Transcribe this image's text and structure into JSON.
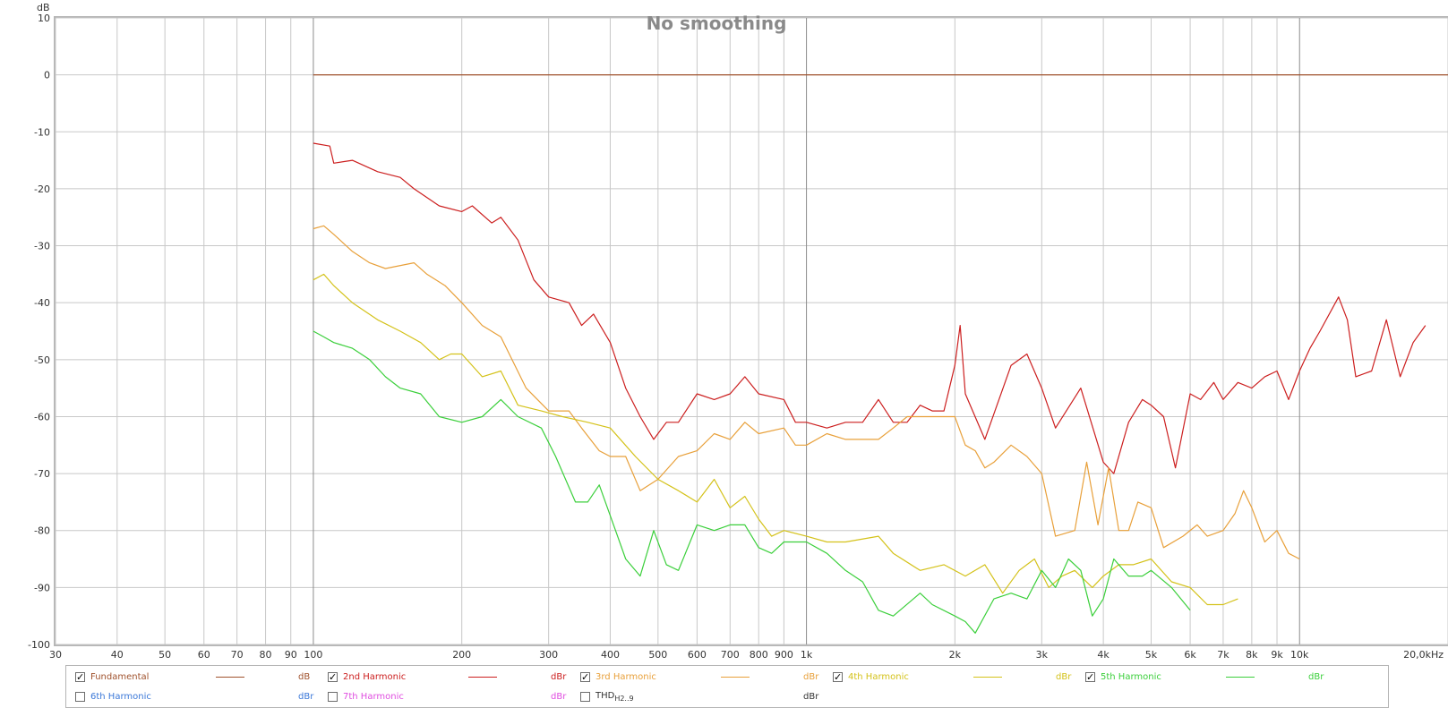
{
  "chart_data": {
    "type": "line",
    "title": "No smoothing",
    "ylabel": "dB",
    "x_scale": "log",
    "xlim": [
      30,
      20000
    ],
    "ylim": [
      -100,
      10
    ],
    "y_ticks": [
      10,
      0,
      -10,
      -20,
      -30,
      -40,
      -50,
      -60,
      -70,
      -80,
      -90,
      -100
    ],
    "x_ticks": [
      {
        "v": 30,
        "label": "30"
      },
      {
        "v": 40,
        "label": "40"
      },
      {
        "v": 50,
        "label": "50"
      },
      {
        "v": 60,
        "label": "60"
      },
      {
        "v": 70,
        "label": "70"
      },
      {
        "v": 80,
        "label": "80"
      },
      {
        "v": 90,
        "label": "90"
      },
      {
        "v": 100,
        "label": "100"
      },
      {
        "v": 200,
        "label": "200"
      },
      {
        "v": 300,
        "label": "300"
      },
      {
        "v": 400,
        "label": "400"
      },
      {
        "v": 500,
        "label": "500"
      },
      {
        "v": 600,
        "label": "600"
      },
      {
        "v": 700,
        "label": "700"
      },
      {
        "v": 800,
        "label": "800"
      },
      {
        "v": 900,
        "label": "900"
      },
      {
        "v": 1000,
        "label": "1k"
      },
      {
        "v": 2000,
        "label": "2k"
      },
      {
        "v": 3000,
        "label": "3k"
      },
      {
        "v": 4000,
        "label": "4k"
      },
      {
        "v": 5000,
        "label": "5k"
      },
      {
        "v": 6000,
        "label": "6k"
      },
      {
        "v": 7000,
        "label": "7k"
      },
      {
        "v": 8000,
        "label": "8k"
      },
      {
        "v": 9000,
        "label": "9k"
      },
      {
        "v": 10000,
        "label": "10k"
      },
      {
        "v": 20000,
        "label": "20,0kHz"
      }
    ],
    "grid": true,
    "series": [
      {
        "name": "Fundamental",
        "unit": "dB",
        "color": "#a0522d",
        "checked": true,
        "points": [
          [
            100,
            0
          ],
          [
            20000,
            0
          ]
        ]
      },
      {
        "name": "2nd Harmonic",
        "unit": "dBr",
        "color": "#cc1f1f",
        "checked": true,
        "points": [
          [
            100,
            -12
          ],
          [
            108,
            -12.5
          ],
          [
            110,
            -15.5
          ],
          [
            120,
            -15
          ],
          [
            135,
            -17
          ],
          [
            150,
            -18
          ],
          [
            160,
            -20
          ],
          [
            180,
            -23
          ],
          [
            200,
            -24
          ],
          [
            210,
            -23
          ],
          [
            230,
            -26
          ],
          [
            240,
            -25
          ],
          [
            260,
            -29
          ],
          [
            280,
            -36
          ],
          [
            300,
            -39
          ],
          [
            330,
            -40
          ],
          [
            350,
            -44
          ],
          [
            370,
            -42
          ],
          [
            400,
            -47
          ],
          [
            430,
            -55
          ],
          [
            460,
            -60
          ],
          [
            490,
            -64
          ],
          [
            520,
            -61
          ],
          [
            550,
            -61
          ],
          [
            600,
            -56
          ],
          [
            650,
            -57
          ],
          [
            700,
            -56
          ],
          [
            750,
            -53
          ],
          [
            800,
            -56
          ],
          [
            900,
            -57
          ],
          [
            950,
            -61
          ],
          [
            1000,
            -61
          ],
          [
            1100,
            -62
          ],
          [
            1200,
            -61
          ],
          [
            1300,
            -61
          ],
          [
            1400,
            -57
          ],
          [
            1500,
            -61
          ],
          [
            1600,
            -61
          ],
          [
            1700,
            -58
          ],
          [
            1800,
            -59
          ],
          [
            1900,
            -59
          ],
          [
            2000,
            -51
          ],
          [
            2050,
            -44
          ],
          [
            2100,
            -56
          ],
          [
            2300,
            -64
          ],
          [
            2600,
            -51
          ],
          [
            2800,
            -49
          ],
          [
            3000,
            -55
          ],
          [
            3200,
            -62
          ],
          [
            3600,
            -55
          ],
          [
            4000,
            -68
          ],
          [
            4200,
            -70
          ],
          [
            4500,
            -61
          ],
          [
            4800,
            -57
          ],
          [
            5000,
            -58
          ],
          [
            5300,
            -60
          ],
          [
            5600,
            -69
          ],
          [
            6000,
            -56
          ],
          [
            6300,
            -57
          ],
          [
            6700,
            -54
          ],
          [
            7000,
            -57
          ],
          [
            7500,
            -54
          ],
          [
            8000,
            -55
          ],
          [
            8500,
            -53
          ],
          [
            9000,
            -52
          ],
          [
            9500,
            -57
          ],
          [
            10000,
            -52
          ],
          [
            10500,
            -48
          ],
          [
            11000,
            -45
          ],
          [
            12000,
            -39
          ],
          [
            12500,
            -43
          ],
          [
            13000,
            -53
          ],
          [
            14000,
            -52
          ],
          [
            15000,
            -43
          ],
          [
            16000,
            -53
          ],
          [
            17000,
            -47
          ],
          [
            18000,
            -44
          ]
        ]
      },
      {
        "name": "3rd Harmonic",
        "unit": "dBr",
        "color": "#e8a03a",
        "checked": true,
        "points": [
          [
            100,
            -27
          ],
          [
            105,
            -26.5
          ],
          [
            110,
            -28
          ],
          [
            120,
            -31
          ],
          [
            130,
            -33
          ],
          [
            140,
            -34
          ],
          [
            160,
            -33
          ],
          [
            170,
            -35
          ],
          [
            185,
            -37
          ],
          [
            200,
            -40
          ],
          [
            220,
            -44
          ],
          [
            240,
            -46
          ],
          [
            270,
            -55
          ],
          [
            300,
            -59
          ],
          [
            330,
            -59
          ],
          [
            350,
            -62
          ],
          [
            380,
            -66
          ],
          [
            400,
            -67
          ],
          [
            430,
            -67
          ],
          [
            460,
            -73
          ],
          [
            500,
            -71
          ],
          [
            550,
            -67
          ],
          [
            600,
            -66
          ],
          [
            650,
            -63
          ],
          [
            700,
            -64
          ],
          [
            750,
            -61
          ],
          [
            800,
            -63
          ],
          [
            900,
            -62
          ],
          [
            950,
            -65
          ],
          [
            1000,
            -65
          ],
          [
            1100,
            -63
          ],
          [
            1200,
            -64
          ],
          [
            1400,
            -64
          ],
          [
            1500,
            -62
          ],
          [
            1600,
            -60
          ],
          [
            1800,
            -60
          ],
          [
            2000,
            -60
          ],
          [
            2100,
            -65
          ],
          [
            2200,
            -66
          ],
          [
            2300,
            -69
          ],
          [
            2400,
            -68
          ],
          [
            2600,
            -65
          ],
          [
            2800,
            -67
          ],
          [
            3000,
            -70
          ],
          [
            3200,
            -81
          ],
          [
            3500,
            -80
          ],
          [
            3700,
            -68
          ],
          [
            3900,
            -79
          ],
          [
            4100,
            -69
          ],
          [
            4300,
            -80
          ],
          [
            4500,
            -80
          ],
          [
            4700,
            -75
          ],
          [
            5000,
            -76
          ],
          [
            5300,
            -83
          ],
          [
            5800,
            -81
          ],
          [
            6200,
            -79
          ],
          [
            6500,
            -81
          ],
          [
            7000,
            -80
          ],
          [
            7400,
            -77
          ],
          [
            7700,
            -73
          ],
          [
            8000,
            -76
          ],
          [
            8500,
            -82
          ],
          [
            9000,
            -80
          ],
          [
            9500,
            -84
          ],
          [
            10000,
            -85
          ]
        ]
      },
      {
        "name": "4th Harmonic",
        "unit": "dBr",
        "color": "#d4c21a",
        "checked": true,
        "points": [
          [
            100,
            -36
          ],
          [
            105,
            -35
          ],
          [
            110,
            -37
          ],
          [
            120,
            -40
          ],
          [
            135,
            -43
          ],
          [
            150,
            -45
          ],
          [
            165,
            -47
          ],
          [
            180,
            -50
          ],
          [
            190,
            -49
          ],
          [
            200,
            -49
          ],
          [
            220,
            -53
          ],
          [
            240,
            -52
          ],
          [
            260,
            -58
          ],
          [
            290,
            -59
          ],
          [
            320,
            -60
          ],
          [
            360,
            -61
          ],
          [
            400,
            -62
          ],
          [
            450,
            -67
          ],
          [
            500,
            -71
          ],
          [
            550,
            -73
          ],
          [
            600,
            -75
          ],
          [
            650,
            -71
          ],
          [
            700,
            -76
          ],
          [
            750,
            -74
          ],
          [
            800,
            -78
          ],
          [
            850,
            -81
          ],
          [
            900,
            -80
          ],
          [
            1000,
            -81
          ],
          [
            1100,
            -82
          ],
          [
            1200,
            -82
          ],
          [
            1400,
            -81
          ],
          [
            1500,
            -84
          ],
          [
            1700,
            -87
          ],
          [
            1900,
            -86
          ],
          [
            2100,
            -88
          ],
          [
            2300,
            -86
          ],
          [
            2500,
            -91
          ],
          [
            2700,
            -87
          ],
          [
            2900,
            -85
          ],
          [
            3100,
            -90
          ],
          [
            3300,
            -88
          ],
          [
            3500,
            -87
          ],
          [
            3800,
            -90
          ],
          [
            4000,
            -88
          ],
          [
            4300,
            -86
          ],
          [
            4600,
            -86
          ],
          [
            5000,
            -85
          ],
          [
            5500,
            -89
          ],
          [
            6000,
            -90
          ],
          [
            6500,
            -93
          ],
          [
            7000,
            -93
          ],
          [
            7500,
            -92
          ]
        ]
      },
      {
        "name": "5th Harmonic",
        "unit": "dBr",
        "color": "#3bcf3b",
        "checked": true,
        "points": [
          [
            100,
            -45
          ],
          [
            105,
            -46
          ],
          [
            110,
            -47
          ],
          [
            120,
            -48
          ],
          [
            130,
            -50
          ],
          [
            140,
            -53
          ],
          [
            150,
            -55
          ],
          [
            165,
            -56
          ],
          [
            180,
            -60
          ],
          [
            200,
            -61
          ],
          [
            220,
            -60
          ],
          [
            240,
            -57
          ],
          [
            260,
            -60
          ],
          [
            290,
            -62
          ],
          [
            310,
            -67
          ],
          [
            340,
            -75
          ],
          [
            360,
            -75
          ],
          [
            380,
            -72
          ],
          [
            410,
            -80
          ],
          [
            430,
            -85
          ],
          [
            460,
            -88
          ],
          [
            490,
            -80
          ],
          [
            520,
            -86
          ],
          [
            550,
            -87
          ],
          [
            600,
            -79
          ],
          [
            650,
            -80
          ],
          [
            700,
            -79
          ],
          [
            750,
            -79
          ],
          [
            800,
            -83
          ],
          [
            850,
            -84
          ],
          [
            900,
            -82
          ],
          [
            1000,
            -82
          ],
          [
            1100,
            -84
          ],
          [
            1200,
            -87
          ],
          [
            1300,
            -89
          ],
          [
            1400,
            -94
          ],
          [
            1500,
            -95
          ],
          [
            1700,
            -91
          ],
          [
            1800,
            -93
          ],
          [
            2000,
            -95
          ],
          [
            2100,
            -96
          ],
          [
            2200,
            -98
          ],
          [
            2400,
            -92
          ],
          [
            2600,
            -91
          ],
          [
            2800,
            -92
          ],
          [
            3000,
            -87
          ],
          [
            3200,
            -90
          ],
          [
            3400,
            -85
          ],
          [
            3600,
            -87
          ],
          [
            3800,
            -95
          ],
          [
            4000,
            -92
          ],
          [
            4200,
            -85
          ],
          [
            4500,
            -88
          ],
          [
            4800,
            -88
          ],
          [
            5000,
            -87
          ],
          [
            5500,
            -90
          ],
          [
            6000,
            -94
          ]
        ]
      },
      {
        "name": "6th Harmonic",
        "unit": "dBr",
        "color": "#3b78d8",
        "checked": false,
        "points": []
      },
      {
        "name": "7th Harmonic",
        "unit": "dBr",
        "color": "#e04ee0",
        "checked": false,
        "points": []
      },
      {
        "name": "THD",
        "name_sub": "H2..9",
        "unit": "dBr",
        "color": "#333333",
        "checked": false,
        "points": []
      }
    ]
  }
}
